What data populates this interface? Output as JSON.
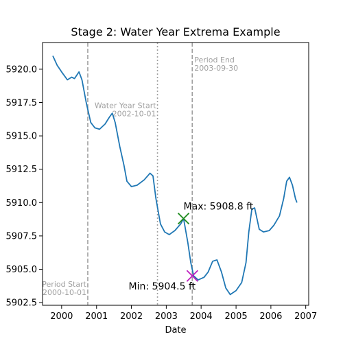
{
  "chart_data": {
    "type": "line",
    "title": "Stage 2: Water Year Extrema Example",
    "xlabel": "Date",
    "ylabel": "",
    "xlim": [
      "1999-06-15",
      "2007-02-01"
    ],
    "ylim": [
      5902.3,
      5922.0
    ],
    "x_ticks": [
      "2000",
      "2001",
      "2002",
      "2003",
      "2004",
      "2005",
      "2006",
      "2007"
    ],
    "y_ticks": [
      "5902.5",
      "5905.0",
      "5907.5",
      "5910.0",
      "5912.5",
      "5915.0",
      "5917.5",
      "5920.0"
    ],
    "grid": false,
    "series": [
      {
        "color": "#1f77b4",
        "points": [
          [
            "1999-10-01",
            5921.0
          ],
          [
            "1999-11-15",
            5920.3
          ],
          [
            "2000-01-01",
            5919.8
          ],
          [
            "2000-03-01",
            5919.2
          ],
          [
            "2000-04-15",
            5919.4
          ],
          [
            "2000-05-15",
            5919.3
          ],
          [
            "2000-07-01",
            5919.8
          ],
          [
            "2000-08-01",
            5919.2
          ],
          [
            "2000-09-15",
            5917.5
          ],
          [
            "2000-11-01",
            5916.0
          ],
          [
            "2000-12-15",
            5915.6
          ],
          [
            "2001-02-01",
            5915.5
          ],
          [
            "2001-04-01",
            5915.9
          ],
          [
            "2001-05-15",
            5916.4
          ],
          [
            "2001-06-15",
            5916.7
          ],
          [
            "2001-07-15",
            5916.0
          ],
          [
            "2001-09-01",
            5914.2
          ],
          [
            "2001-10-15",
            5912.8
          ],
          [
            "2001-11-15",
            5911.6
          ],
          [
            "2002-01-01",
            5911.2
          ],
          [
            "2002-03-01",
            5911.3
          ],
          [
            "2002-05-15",
            5911.7
          ],
          [
            "2002-07-15",
            5912.2
          ],
          [
            "2002-08-15",
            5912.0
          ],
          [
            "2002-09-15",
            5910.3
          ],
          [
            "2002-11-01",
            5908.4
          ],
          [
            "2002-12-15",
            5907.8
          ],
          [
            "2003-02-01",
            5907.6
          ],
          [
            "2003-04-01",
            5907.9
          ],
          [
            "2003-06-01",
            5908.4
          ],
          [
            "2003-07-01",
            5908.8
          ],
          [
            "2003-08-15",
            5907.0
          ],
          [
            "2003-09-15",
            5905.5
          ],
          [
            "2003-10-15",
            5904.5
          ],
          [
            "2003-12-01",
            5904.2
          ],
          [
            "2004-02-01",
            5904.4
          ],
          [
            "2004-03-15",
            5904.8
          ],
          [
            "2004-05-01",
            5905.6
          ],
          [
            "2004-06-15",
            5905.7
          ],
          [
            "2004-08-01",
            5904.8
          ],
          [
            "2004-09-15",
            5903.6
          ],
          [
            "2004-11-01",
            5903.1
          ],
          [
            "2005-01-01",
            5903.4
          ],
          [
            "2005-03-01",
            5904.0
          ],
          [
            "2005-04-15",
            5905.5
          ],
          [
            "2005-05-15",
            5907.8
          ],
          [
            "2005-06-15",
            5909.5
          ],
          [
            "2005-07-15",
            5909.6
          ],
          [
            "2005-09-01",
            5908.0
          ],
          [
            "2005-10-15",
            5907.8
          ],
          [
            "2005-12-15",
            5907.9
          ],
          [
            "2006-02-01",
            5908.3
          ],
          [
            "2006-04-01",
            5909.0
          ],
          [
            "2006-05-15",
            5910.3
          ],
          [
            "2006-06-15",
            5911.6
          ],
          [
            "2006-07-15",
            5911.9
          ],
          [
            "2006-08-15",
            5911.3
          ],
          [
            "2006-09-15",
            5910.3
          ],
          [
            "2006-10-01",
            5910.0
          ]
        ]
      }
    ],
    "vertical_lines": [
      {
        "date": "2000-10-01",
        "style": "dashed",
        "color": "#a0a0a0",
        "label_line1": "Period Start",
        "label_line2": "2000-10-01",
        "label_align": "right",
        "label_y": 5903.7
      },
      {
        "date": "2002-10-01",
        "style": "dotted",
        "color": "#a0a0a0",
        "label_line1": "Water Year Start",
        "label_line2": "2002-10-01",
        "label_align": "right",
        "label_y": 5917.1
      },
      {
        "date": "2003-09-30",
        "style": "dashed",
        "color": "#a0a0a0",
        "label_line1": "Period End",
        "label_line2": "2003-09-30",
        "label_align": "left",
        "label_y": 5920.5
      }
    ],
    "markers": [
      {
        "date": "2003-07-01",
        "value": 5908.8,
        "color": "#1a8a1a",
        "label": "Max: 5908.8 ft",
        "label_position": "above-right"
      },
      {
        "date": "2003-10-01",
        "value": 5904.5,
        "color": "#c020c0",
        "label": "Min: 5904.5 ft",
        "label_position": "left"
      }
    ]
  }
}
